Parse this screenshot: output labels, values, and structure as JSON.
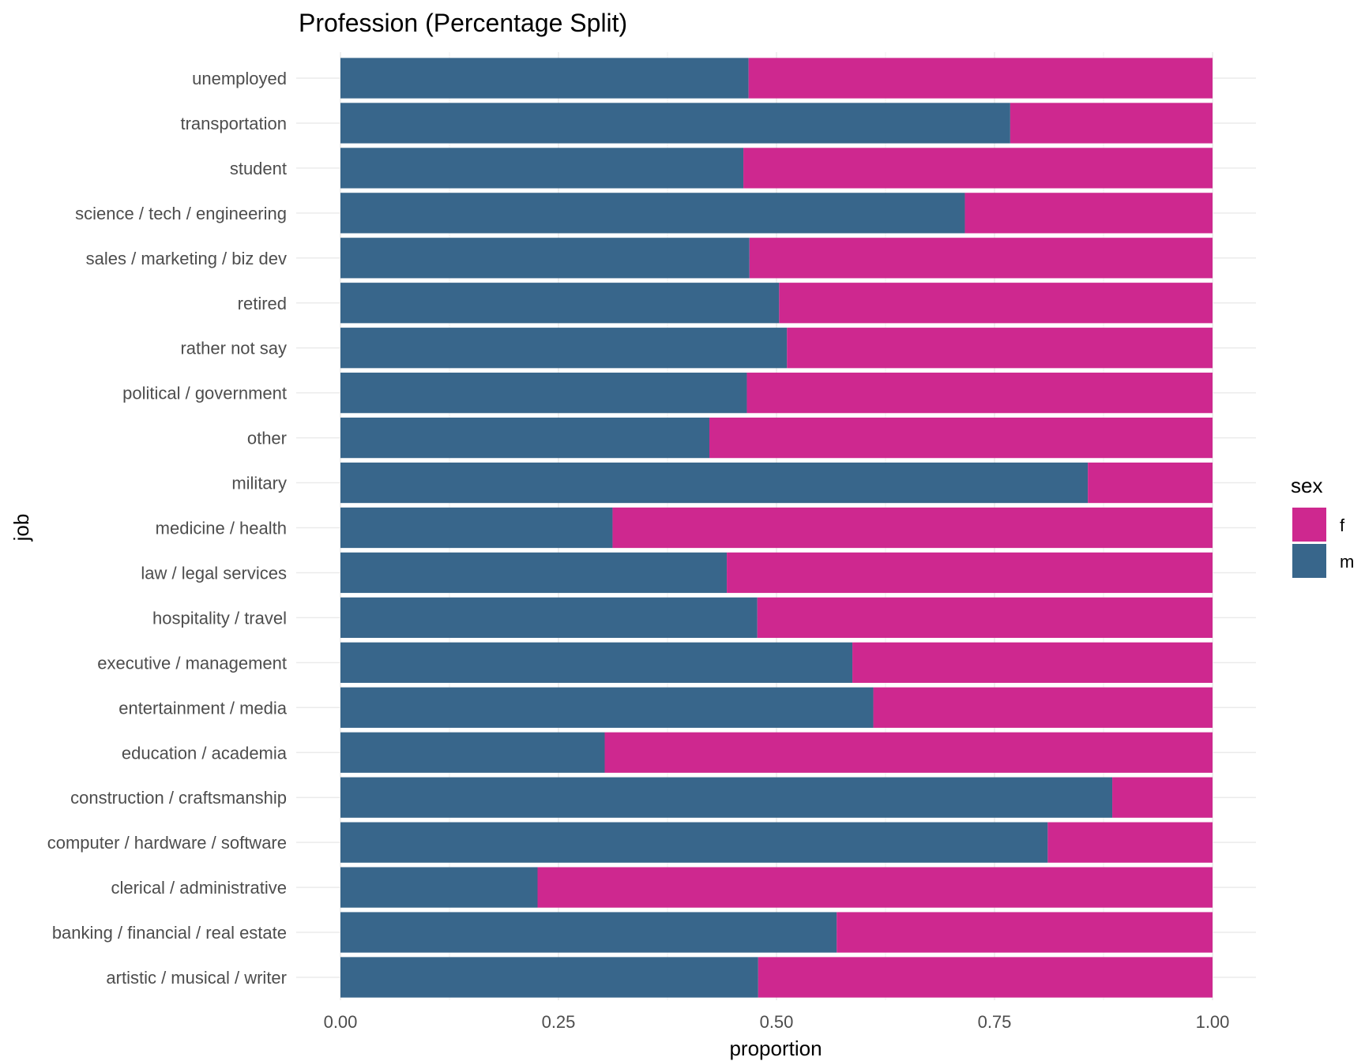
{
  "chart_data": {
    "type": "bar",
    "orientation": "horizontal",
    "stacked": true,
    "title": "Profession (Percentage Split)",
    "xlabel": "proportion",
    "ylabel": "job",
    "xlim": [
      0,
      1
    ],
    "xticks": [
      0,
      0.25,
      0.5,
      0.75,
      1
    ],
    "xtick_labels": [
      "0.00",
      "0.25",
      "0.50",
      "0.75",
      "1.00"
    ],
    "grid": true,
    "legend": {
      "title": "sex",
      "position": "right",
      "entries": [
        "f",
        "m"
      ]
    },
    "colors": {
      "f": "#CE288F",
      "m": "#38668B"
    },
    "categories": [
      "unemployed",
      "transportation",
      "student",
      "science / tech / engineering",
      "sales / marketing / biz dev",
      "retired",
      "rather not say",
      "political / government",
      "other",
      "military",
      "medicine / health",
      "law / legal services",
      "hospitality / travel",
      "executive / management",
      "entertainment / media",
      "education / academia",
      "construction / craftsmanship",
      "computer / hardware / software",
      "clerical / administrative",
      "banking / financial / real estate",
      "artistic / musical / writer"
    ],
    "series": [
      {
        "name": "m",
        "values": [
          0.468,
          0.768,
          0.462,
          0.716,
          0.469,
          0.503,
          0.512,
          0.466,
          0.423,
          0.857,
          0.312,
          0.443,
          0.478,
          0.587,
          0.611,
          0.303,
          0.885,
          0.811,
          0.226,
          0.569,
          0.479
        ]
      },
      {
        "name": "f",
        "values": [
          0.532,
          0.232,
          0.538,
          0.284,
          0.531,
          0.497,
          0.488,
          0.534,
          0.577,
          0.143,
          0.688,
          0.557,
          0.522,
          0.413,
          0.389,
          0.697,
          0.115,
          0.189,
          0.774,
          0.431,
          0.521
        ]
      }
    ]
  }
}
